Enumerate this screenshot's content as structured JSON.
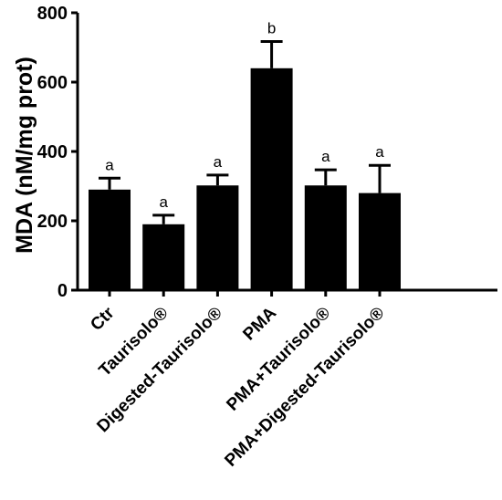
{
  "chart_data": {
    "type": "bar",
    "title": "",
    "xlabel": "",
    "ylabel": "MDA (nM/mg prot)",
    "ylim": [
      0,
      800
    ],
    "yticks": [
      0,
      200,
      400,
      600,
      800
    ],
    "grid": false,
    "categories": [
      "Ctr",
      "Taurisolo®",
      "Digested-Taurisolo®",
      "PMA",
      "PMA+Taurisolo®",
      "PMA+Digested-Taurisolo®"
    ],
    "values": [
      290,
      190,
      302,
      640,
      302,
      280
    ],
    "error": [
      33,
      26,
      30,
      77,
      45,
      80
    ],
    "significance": [
      "a",
      "a",
      "a",
      "b",
      "a",
      "a"
    ],
    "bar_color": "#000000"
  }
}
